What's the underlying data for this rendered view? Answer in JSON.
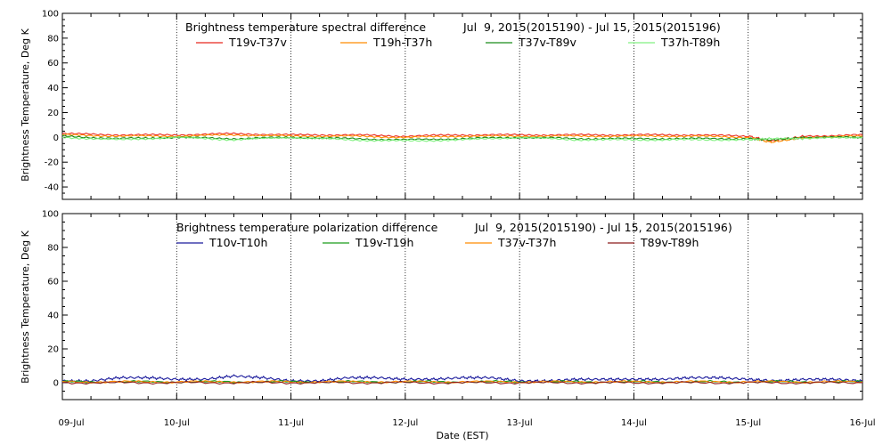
{
  "chart_data": [
    {
      "type": "line",
      "title": "Brightness temperature spectral difference",
      "date_range": "Jul  9, 2015(2015190) - Jul 15, 2015(2015196)",
      "ylabel": "Brightness Temperature, Deg K",
      "xlabel": "",
      "ylim": [
        -50,
        100
      ],
      "yticks": [
        -40,
        -20,
        0,
        20,
        40,
        60,
        80,
        100
      ],
      "ytick_labels": [
        "-40",
        "-20",
        "0",
        "20",
        "40",
        "60",
        "80",
        "100"
      ],
      "xlim": [
        0,
        7
      ],
      "grid": "dotted vertical at day boundaries",
      "legend_position": "top",
      "series": [
        {
          "name": "T19v-T37v",
          "color": "#e8281e",
          "x": [
            0,
            0.5,
            1,
            1.5,
            2,
            2.5,
            3,
            3.5,
            4,
            4.5,
            5,
            5.5,
            6,
            6.2,
            6.5,
            7
          ],
          "values": [
            3,
            2,
            2,
            3,
            2,
            2,
            1,
            2,
            2,
            2,
            2,
            2,
            1,
            -3,
            1,
            2
          ]
        },
        {
          "name": "T19h-T37h",
          "color": "#ff8c00",
          "x": [
            0,
            0.5,
            1,
            1.5,
            2,
            2.5,
            3,
            3.5,
            4,
            4.5,
            5,
            5.5,
            6,
            6.2,
            6.5,
            7
          ],
          "values": [
            2,
            1,
            1,
            2,
            1,
            1,
            0,
            1,
            1,
            1,
            1,
            1,
            0,
            -4,
            0,
            1
          ]
        },
        {
          "name": "T37v-T89v",
          "color": "#1a8c1a",
          "x": [
            0,
            0.5,
            1,
            1.5,
            2,
            2.5,
            3,
            3.5,
            4,
            4.5,
            5,
            5.5,
            6,
            6.2,
            6.5,
            7
          ],
          "values": [
            1,
            -1,
            0,
            -1,
            0,
            -1,
            -2,
            -1,
            0,
            -1,
            -1,
            -1,
            -1,
            -2,
            0,
            0
          ]
        },
        {
          "name": "T37h-T89h",
          "color": "#80f080",
          "x": [
            0,
            0.5,
            1,
            1.5,
            2,
            2.5,
            3,
            3.5,
            4,
            4.5,
            5,
            5.5,
            6,
            6.2,
            6.5,
            7
          ],
          "values": [
            0,
            -2,
            0,
            -2,
            0,
            -2,
            -3,
            -2,
            0,
            -2,
            -2,
            -2,
            -2,
            -1,
            -1,
            0
          ]
        }
      ]
    },
    {
      "type": "line",
      "title": "Brightness temperature polarization difference",
      "date_range": "Jul  9, 2015(2015190) - Jul 15, 2015(2015196)",
      "ylabel": "Brightness Temperature, Deg K",
      "xlabel": "Date (EST)",
      "ylim": [
        -10,
        100
      ],
      "yticks": [
        0,
        20,
        40,
        60,
        80,
        100
      ],
      "ytick_labels": [
        "0",
        "20",
        "40",
        "60",
        "80",
        "100"
      ],
      "xlim": [
        0,
        7
      ],
      "categories": [
        "09-Jul",
        "10-Jul",
        "11-Jul",
        "12-Jul",
        "13-Jul",
        "14-Jul",
        "15-Jul",
        "16-Jul"
      ],
      "grid": "dotted vertical at day boundaries",
      "legend_position": "top",
      "series": [
        {
          "name": "T10v-T10h",
          "color": "#1a1a9c",
          "x": [
            0,
            0.25,
            0.5,
            0.75,
            1,
            1.25,
            1.5,
            1.75,
            2,
            2.25,
            2.5,
            2.75,
            3,
            3.25,
            3.5,
            3.75,
            4,
            4.25,
            4.5,
            4.75,
            5,
            5.25,
            5.5,
            5.75,
            6,
            6.25,
            6.5,
            6.75,
            7
          ],
          "values": [
            1,
            1,
            3,
            3,
            2,
            2,
            4,
            3,
            1,
            1,
            3,
            3,
            2,
            2,
            3,
            3,
            1,
            1,
            2,
            2,
            2,
            2,
            3,
            3,
            2,
            1,
            2,
            2,
            1
          ]
        },
        {
          "name": "T19v-T19h",
          "color": "#1a9c1a",
          "x": [
            0,
            1,
            2,
            3,
            4,
            5,
            6,
            7
          ],
          "values": [
            0.5,
            0.5,
            0.5,
            0.5,
            0.5,
            0.5,
            0.5,
            0.5
          ]
        },
        {
          "name": "T37v-T37h",
          "color": "#ff8c00",
          "x": [
            0,
            1,
            2,
            3,
            4,
            5,
            6,
            7
          ],
          "values": [
            0.5,
            0.5,
            0.5,
            0.5,
            0.5,
            0.5,
            0.5,
            0.5
          ]
        },
        {
          "name": "T89v-T89h",
          "color": "#8c1a1a",
          "x": [
            0,
            1,
            2,
            3,
            4,
            5,
            6,
            7
          ],
          "values": [
            0,
            0,
            0,
            0,
            0,
            0,
            0,
            0
          ]
        }
      ]
    }
  ]
}
